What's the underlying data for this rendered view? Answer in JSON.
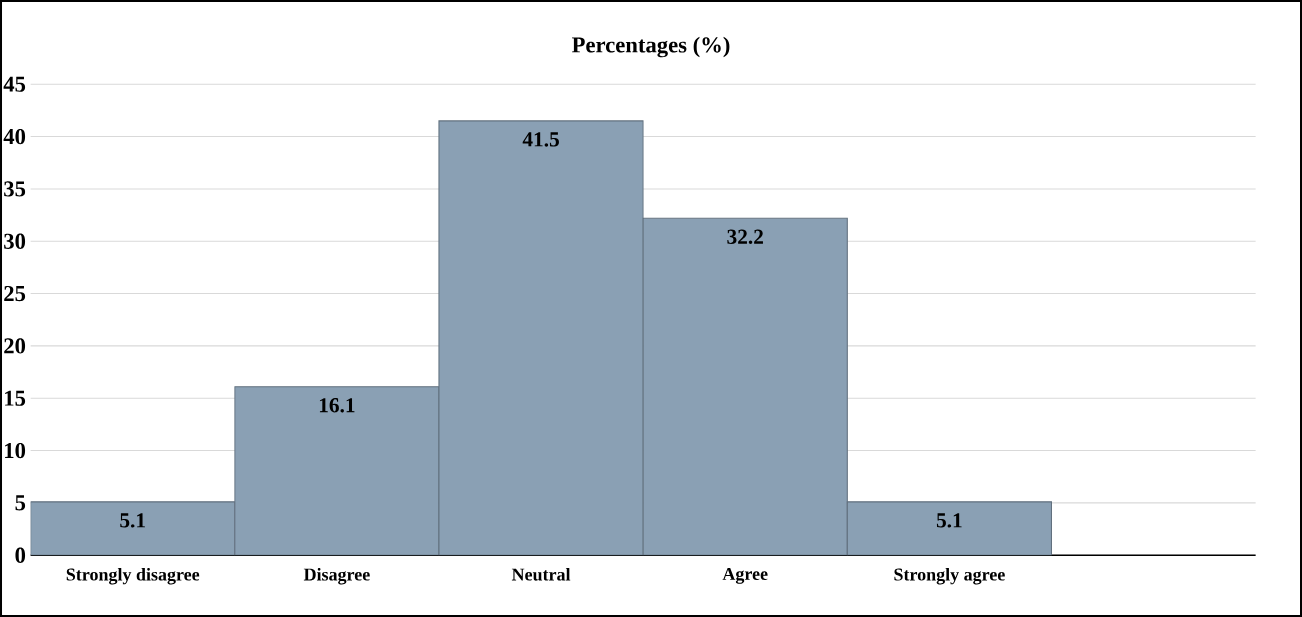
{
  "chart_data": {
    "type": "bar",
    "title": "Percentages (%)",
    "categories": [
      "Strongly disagree",
      "Disagree",
      "Neutral",
      "Agree",
      "Strongly agree",
      null
    ],
    "values": [
      5.1,
      16.1,
      41.5,
      32.2,
      5.1,
      null
    ],
    "color": "#8aa0b4",
    "ylim": [
      0,
      45
    ],
    "yticks": [
      0,
      5,
      10,
      15,
      20,
      25,
      30,
      35,
      40,
      45
    ],
    "grid": "y",
    "data_labels": true
  }
}
